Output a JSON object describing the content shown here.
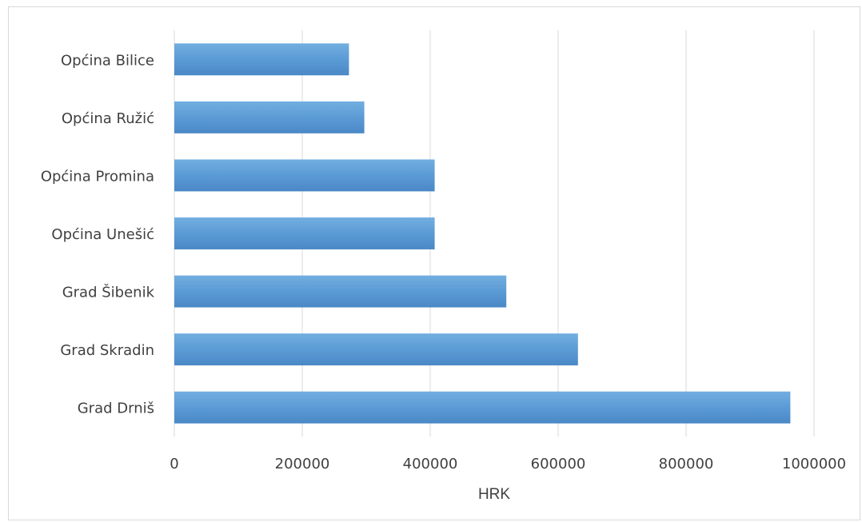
{
  "chart_data": {
    "type": "bar",
    "orientation": "horizontal",
    "categories": [
      "Općina Bilice",
      "Općina Ružić",
      "Općina Promina",
      "Općina Unešić",
      "Grad Šibenik",
      "Grad Skradin",
      "Grad Drniš"
    ],
    "values": [
      273000,
      297000,
      407000,
      407000,
      519000,
      631000,
      963000
    ],
    "xlabel": "HRK",
    "xlim": [
      0,
      1000000
    ],
    "xticks": [
      0,
      200000,
      400000,
      600000,
      800000,
      1000000
    ],
    "xtick_labels": [
      "0",
      "200000",
      "400000",
      "600000",
      "800000",
      "1000000"
    ],
    "grid": "vertical",
    "legend": "none",
    "colors": {
      "bar": "#5b9bd5",
      "bar_light": "#72aee0",
      "bar_dark": "#4a88c6",
      "grid": "#d9d9d9"
    }
  }
}
